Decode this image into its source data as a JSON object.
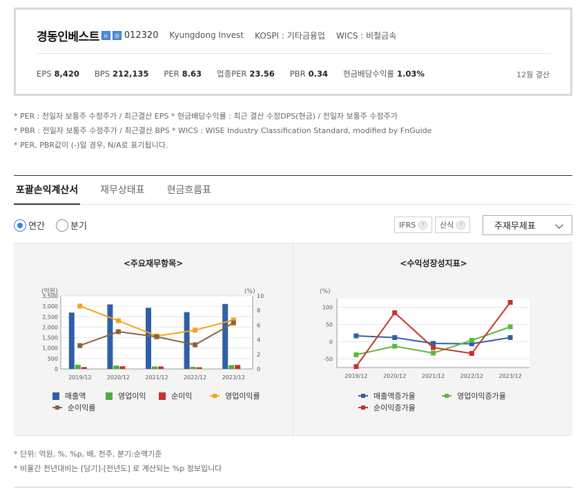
{
  "company": {
    "name": "경동인베스트",
    "icon1": "⌂",
    "icon2": "◎",
    "code": "012320",
    "english_name": "Kyungdong Invest",
    "market": "KOSPI : 기타금융업",
    "wics": "WICS : 비철금속"
  },
  "metrics": [
    {
      "label": "EPS",
      "value": "8,420"
    },
    {
      "label": "BPS",
      "value": "212,135"
    },
    {
      "label": "PER",
      "value": "8.63"
    },
    {
      "label": "업종PER",
      "value": "23.56"
    },
    {
      "label": "PBR",
      "value": "0.34"
    },
    {
      "label": "현금배당수익률",
      "value": "1.03%"
    }
  ],
  "settlement": "12월 결산",
  "notes": [
    "* PER : 전일자 보통주 수정주가 / 최근결산 EPS * 현금배당수익률 : 최근 결산 수정DPS(현금) / 전일자 보통주 수정주가",
    "* PBR : 전일자 보통주 수정주가 / 최근결산 BPS * WICS : WISE Industry Classification Standard, modified by FnGuide",
    "* PER, PBR값이 (-)일 경우, N/A로 표기됩니다."
  ],
  "tabs": [
    "포괄손익계산서",
    "재무상태표",
    "현금흐름표"
  ],
  "controls": {
    "annual": "연간",
    "quarterly": "분기",
    "ifrs": "IFRS",
    "method": "산식",
    "help": "?",
    "dropdown": "주재무제표"
  },
  "chart_left": {
    "title": "<주요재무항목>",
    "y_left_label": "(억원)",
    "y_right_label": "(%)",
    "y_left_ticks": [
      "3,500",
      "3,000",
      "2,500",
      "2,000",
      "1,500",
      "1,000",
      "500",
      "0"
    ],
    "y_right_ticks": [
      "10",
      "8",
      "6",
      "4",
      "2",
      "0"
    ],
    "legend": [
      "매출액",
      "영업이익",
      "순이익",
      "영업이익률",
      "순이익률"
    ]
  },
  "chart_right": {
    "title": "<수익성장성지표>",
    "y_label": "(%)",
    "y_ticks": [
      "100",
      "50",
      "0",
      "-50"
    ],
    "legend": [
      "매출액증가율",
      "영업이익증가율",
      "순이익증가율"
    ]
  },
  "chart_data": [
    {
      "type": "bar",
      "title": "<주요재무항목>",
      "categories": [
        "2019/12",
        "2020/12",
        "2021/12",
        "2022/12",
        "2023/12"
      ],
      "ylim": [
        0,
        3500
      ],
      "y2lim": [
        0,
        10
      ],
      "series": [
        {
          "name": "매출액",
          "axis": "left",
          "kind": "bar",
          "color": "#2f5fa7",
          "values": [
            2700,
            3090,
            2930,
            2720,
            3110
          ]
        },
        {
          "name": "영업이익",
          "axis": "left",
          "kind": "bar",
          "color": "#4caf3d",
          "values": [
            200,
            160,
            120,
            100,
            180
          ]
        },
        {
          "name": "순이익",
          "axis": "left",
          "kind": "bar",
          "color": "#c8332a",
          "values": [
            90,
            130,
            120,
            80,
            190
          ]
        },
        {
          "name": "영업이익률",
          "axis": "right",
          "kind": "line",
          "color": "#f5a21b",
          "values": [
            8.6,
            6.6,
            4.5,
            5.3,
            6.7
          ]
        },
        {
          "name": "순이익률",
          "axis": "right",
          "kind": "line",
          "color": "#8c6239",
          "values": [
            3.2,
            5.1,
            4.4,
            3.3,
            6.3
          ]
        }
      ]
    },
    {
      "type": "line",
      "title": "<수익성장성지표>",
      "categories": [
        "2019/12",
        "2020/12",
        "2021/12",
        "2022/12",
        "2023/12"
      ],
      "ylim": [
        -75,
        125
      ],
      "series": [
        {
          "name": "매출액증가율",
          "color": "#2f5fa7",
          "values": [
            17,
            12,
            -5,
            -6,
            12
          ]
        },
        {
          "name": "영업이익증가율",
          "color": "#5cb83f",
          "values": [
            -38,
            -13,
            -33,
            4,
            43
          ]
        },
        {
          "name": "순이익증가율",
          "color": "#c8332a",
          "values": [
            -72,
            84,
            -17,
            -34,
            114
          ]
        }
      ]
    }
  ],
  "footer_notes": [
    "* 단위: 억원, %, %p, 배, 천주, 분기:순액기준",
    "* 비율간 전년대비는 [당기]-[전년도] 로 계산되는 %p 정보입니다"
  ]
}
